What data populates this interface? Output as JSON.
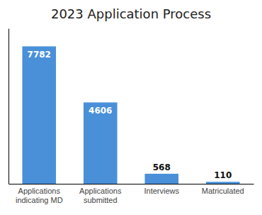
{
  "chart_data": {
    "type": "bar",
    "title": "2023 Application Process",
    "categories": [
      "Applications\nindicating MD",
      "Applications\nsubmitted",
      "Interviews",
      "Matriculated"
    ],
    "values": [
      7782,
      4606,
      568,
      110
    ],
    "color": "#4a90d9",
    "ylim": [
      0,
      8800
    ],
    "tick_labels": "x",
    "data_labels": true
  }
}
